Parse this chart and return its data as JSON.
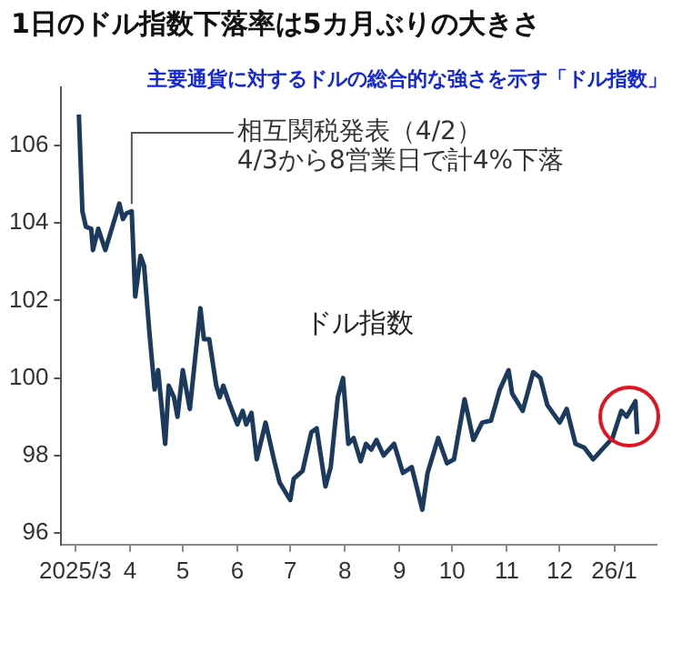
{
  "chart_data": {
    "type": "line",
    "title": "1日のドル指数下落率は5カ月ぶりの大きさ",
    "subtitle": "主要通貨に対するドルの総合的な強さを示す「ドル指数」",
    "x": [
      "2025-03-03",
      "2025-03-05",
      "2025-03-07",
      "2025-03-10",
      "2025-03-11",
      "2025-03-14",
      "2025-03-18",
      "2025-03-22",
      "2025-03-24",
      "2025-03-26",
      "2025-03-28",
      "2025-03-30",
      "2025-04-02",
      "2025-04-04",
      "2025-04-07",
      "2025-04-09",
      "2025-04-12",
      "2025-04-15",
      "2025-04-17",
      "2025-04-21",
      "2025-04-23",
      "2025-04-26",
      "2025-04-28",
      "2025-05-01",
      "2025-05-05",
      "2025-05-08",
      "2025-05-11",
      "2025-05-13",
      "2025-05-16",
      "2025-05-20",
      "2025-05-22",
      "2025-05-24",
      "2025-05-27",
      "2025-06-01",
      "2025-06-04",
      "2025-06-06",
      "2025-06-09",
      "2025-06-12",
      "2025-06-17",
      "2025-06-22",
      "2025-06-25",
      "2025-07-01",
      "2025-07-03",
      "2025-07-08",
      "2025-07-13",
      "2025-07-16",
      "2025-07-21",
      "2025-07-24",
      "2025-07-28",
      "2025-07-31",
      "2025-08-03",
      "2025-08-06",
      "2025-08-10",
      "2025-08-13",
      "2025-08-16",
      "2025-08-19",
      "2025-08-23",
      "2025-08-29",
      "2025-09-03",
      "2025-09-08",
      "2025-09-14",
      "2025-09-17",
      "2025-09-23",
      "2025-09-28",
      "2025-10-02",
      "2025-10-08",
      "2025-10-13",
      "2025-10-18",
      "2025-10-23",
      "2025-10-28",
      "2025-11-02",
      "2025-11-04",
      "2025-11-10",
      "2025-11-16",
      "2025-11-20",
      "2025-11-24",
      "2025-12-01",
      "2025-12-05",
      "2025-12-10",
      "2025-12-15",
      "2025-12-20",
      "2025-12-25",
      "2025-12-31",
      "2026-01-05",
      "2026-01-08",
      "2026-01-13",
      "2026-01-14"
    ],
    "series": [
      {
        "name": "ドル指数",
        "color": "#1b3a5e",
        "values": [
          106.8,
          104.3,
          103.9,
          103.85,
          103.3,
          103.85,
          103.3,
          103.9,
          104.2,
          104.5,
          104.1,
          104.25,
          104.3,
          102.1,
          103.15,
          102.9,
          101.2,
          99.7,
          100.2,
          98.3,
          99.8,
          99.5,
          99.0,
          100.2,
          99.2,
          100.5,
          101.8,
          101.0,
          101.0,
          99.8,
          99.5,
          99.8,
          99.4,
          98.8,
          99.15,
          98.8,
          99.1,
          97.9,
          98.85,
          97.85,
          97.3,
          96.85,
          97.4,
          97.6,
          98.6,
          98.7,
          97.2,
          97.7,
          99.5,
          100.0,
          98.3,
          98.45,
          97.85,
          98.3,
          98.15,
          98.4,
          98.0,
          98.3,
          97.55,
          97.7,
          96.6,
          97.55,
          98.45,
          97.8,
          97.9,
          99.45,
          98.4,
          98.85,
          98.9,
          99.7,
          100.2,
          99.6,
          99.15,
          100.15,
          100.0,
          99.3,
          98.85,
          99.2,
          98.3,
          98.2,
          97.9,
          98.15,
          98.45,
          99.15,
          99.0,
          99.4,
          98.55
        ]
      }
    ],
    "xlim": [
      "2025-02-21",
      "2026-01-25"
    ],
    "xticks": [
      {
        "value": "2025-03-01",
        "label": "2025/3"
      },
      {
        "value": "2025-04-01",
        "label": "4"
      },
      {
        "value": "2025-05-01",
        "label": "5"
      },
      {
        "value": "2025-06-01",
        "label": "6"
      },
      {
        "value": "2025-07-01",
        "label": "7"
      },
      {
        "value": "2025-08-01",
        "label": "8"
      },
      {
        "value": "2025-09-01",
        "label": "9"
      },
      {
        "value": "2025-10-01",
        "label": "10"
      },
      {
        "value": "2025-11-01",
        "label": "11"
      },
      {
        "value": "2025-12-01",
        "label": "12"
      },
      {
        "value": "2026-01-01",
        "label": "26/1"
      }
    ],
    "ylim": [
      95.7,
      107.5
    ],
    "yticks": [
      96,
      98,
      100,
      102,
      104,
      106
    ],
    "grid": false,
    "legend": false,
    "annotations": [
      {
        "text": "相互関税発表（4/2）\n4/3から8営業日で計4%下落",
        "x": "2025-04-02",
        "y": 104.3
      }
    ]
  }
}
